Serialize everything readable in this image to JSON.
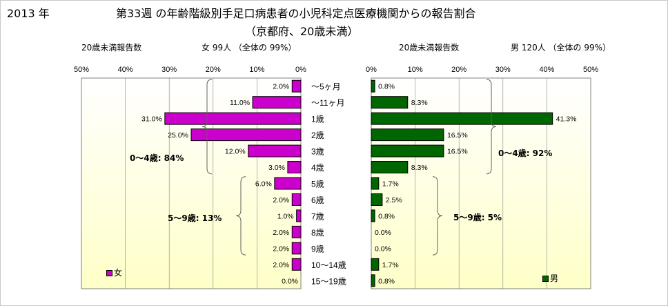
{
  "header": {
    "year": "2013 年",
    "title_line1": "第33週 の年齢階級別手足口病患者の小児科定点医療機関からの報告割合",
    "title_line2": "（京都府、20歳未満）"
  },
  "female": {
    "count_label": "20歳未満報告数",
    "total_label": "女 99人 （全体の 99%）",
    "legend": "女",
    "bracket_04": "0～4歳: 84%",
    "bracket_59": "5～9歳: 13%"
  },
  "male": {
    "count_label": "20歳未満報告数",
    "total_label": "男 120人 （全体の 99%）",
    "legend": "男",
    "bracket_04": "0～4歳: 92%",
    "bracket_59": "5～9歳:  5%"
  },
  "colors": {
    "female": "#cc00cc",
    "male": "#006600",
    "plot_top": "#ffffff",
    "plot_bottom": "#ffffc8",
    "grid": "#808080"
  },
  "chart_data": [
    {
      "type": "bar",
      "orientation": "horizontal",
      "direction": "right-to-left",
      "categories": [
        "～5ヶ月",
        "～11ヶ月",
        "1歳",
        "2歳",
        "3歳",
        "4歳",
        "5歳",
        "6歳",
        "7歳",
        "8歳",
        "9歳",
        "10～14歳",
        "15～19歳"
      ],
      "series": [
        {
          "name": "女",
          "values": [
            2.0,
            11.0,
            31.0,
            25.0,
            12.0,
            3.0,
            6.0,
            2.0,
            1.0,
            2.0,
            2.0,
            2.0,
            0.0
          ]
        }
      ],
      "value_labels": [
        "2.0%",
        "11.0%",
        "31.0%",
        "25.0%",
        "12.0%",
        "3.0%",
        "6.0%",
        "2.0%",
        "1.0%",
        "2.0%",
        "2.0%",
        "2.0%",
        "0.0%"
      ],
      "xlim": [
        0,
        50
      ],
      "ticks": [
        "50%",
        "40%",
        "30%",
        "20%",
        "10%",
        "0%"
      ],
      "grid": true,
      "legend_position": "bottom-left"
    },
    {
      "type": "bar",
      "orientation": "horizontal",
      "direction": "left-to-right",
      "categories": [
        "～5ヶ月",
        "～11ヶ月",
        "1歳",
        "2歳",
        "3歳",
        "4歳",
        "5歳",
        "6歳",
        "7歳",
        "8歳",
        "9歳",
        "10～14歳",
        "15～19歳"
      ],
      "series": [
        {
          "name": "男",
          "values": [
            0.8,
            8.3,
            41.3,
            16.5,
            16.5,
            8.3,
            1.7,
            2.5,
            0.8,
            0.0,
            0.0,
            1.7,
            0.8
          ]
        }
      ],
      "value_labels": [
        "0.8%",
        "8.3%",
        "41.3%",
        "16.5%",
        "16.5%",
        "8.3%",
        "1.7%",
        "2.5%",
        "0.8%",
        "0.0%",
        "0.0%",
        "1.7%",
        "0.8%"
      ],
      "xlim": [
        0,
        50
      ],
      "ticks": [
        "0%",
        "10%",
        "20%",
        "30%",
        "40%",
        "50%"
      ],
      "grid": true,
      "legend_position": "bottom-right"
    }
  ]
}
